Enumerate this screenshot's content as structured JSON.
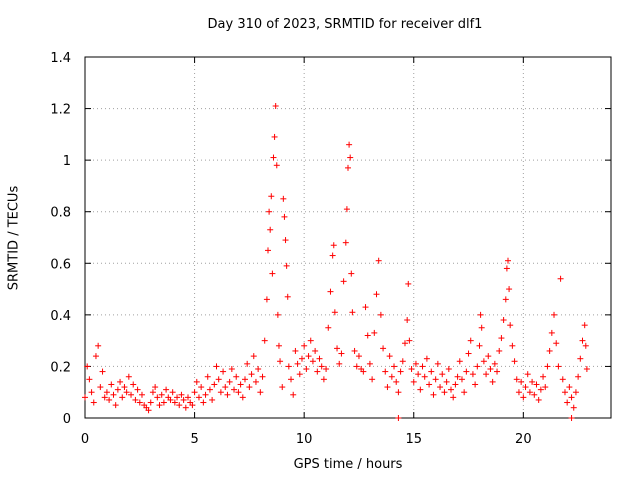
{
  "chart_data": {
    "type": "scatter",
    "title": "Day 310 of 2023, SRMTID for receiver dlf1",
    "xlabel": "GPS time / hours",
    "ylabel": "SRMTID / TECUs",
    "xlim": [
      0,
      24
    ],
    "ylim": [
      0,
      1.4
    ],
    "xticks": [
      "0",
      "5",
      "10",
      "15",
      "20"
    ],
    "yticks": [
      "0",
      "0.2",
      "0.4",
      "0.6",
      "0.8",
      "1",
      "1.2",
      "1.4"
    ],
    "grid": true,
    "marker": "+",
    "series_color": "#ff0000",
    "series": [
      {
        "name": "SRMTID",
        "points": [
          [
            0.0,
            0.08
          ],
          [
            0.1,
            0.2
          ],
          [
            0.2,
            0.15
          ],
          [
            0.3,
            0.1
          ],
          [
            0.4,
            0.06
          ],
          [
            0.5,
            0.24
          ],
          [
            0.6,
            0.28
          ],
          [
            0.7,
            0.12
          ],
          [
            0.8,
            0.18
          ],
          [
            0.9,
            0.08
          ],
          [
            1.0,
            0.1
          ],
          [
            1.1,
            0.07
          ],
          [
            1.2,
            0.13
          ],
          [
            1.3,
            0.09
          ],
          [
            1.4,
            0.05
          ],
          [
            1.5,
            0.11
          ],
          [
            1.6,
            0.14
          ],
          [
            1.7,
            0.08
          ],
          [
            1.8,
            0.12
          ],
          [
            1.9,
            0.1
          ],
          [
            2.0,
            0.16
          ],
          [
            2.1,
            0.09
          ],
          [
            2.2,
            0.13
          ],
          [
            2.3,
            0.07
          ],
          [
            2.4,
            0.11
          ],
          [
            2.5,
            0.06
          ],
          [
            2.6,
            0.09
          ],
          [
            2.7,
            0.05
          ],
          [
            2.8,
            0.04
          ],
          [
            2.9,
            0.03
          ],
          [
            3.0,
            0.06
          ],
          [
            3.1,
            0.1
          ],
          [
            3.2,
            0.12
          ],
          [
            3.3,
            0.08
          ],
          [
            3.4,
            0.05
          ],
          [
            3.5,
            0.09
          ],
          [
            3.6,
            0.06
          ],
          [
            3.7,
            0.11
          ],
          [
            3.8,
            0.08
          ],
          [
            3.9,
            0.07
          ],
          [
            4.0,
            0.1
          ],
          [
            4.1,
            0.06
          ],
          [
            4.2,
            0.08
          ],
          [
            4.3,
            0.05
          ],
          [
            4.4,
            0.09
          ],
          [
            4.5,
            0.07
          ],
          [
            4.6,
            0.04
          ],
          [
            4.7,
            0.08
          ],
          [
            4.8,
            0.06
          ],
          [
            4.9,
            0.05
          ],
          [
            5.0,
            0.1
          ],
          [
            5.1,
            0.14
          ],
          [
            5.2,
            0.08
          ],
          [
            5.3,
            0.12
          ],
          [
            5.4,
            0.06
          ],
          [
            5.5,
            0.09
          ],
          [
            5.6,
            0.16
          ],
          [
            5.7,
            0.11
          ],
          [
            5.8,
            0.07
          ],
          [
            5.9,
            0.13
          ],
          [
            6.0,
            0.2
          ],
          [
            6.1,
            0.15
          ],
          [
            6.2,
            0.1
          ],
          [
            6.3,
            0.18
          ],
          [
            6.4,
            0.12
          ],
          [
            6.5,
            0.09
          ],
          [
            6.6,
            0.14
          ],
          [
            6.7,
            0.19
          ],
          [
            6.8,
            0.11
          ],
          [
            6.9,
            0.16
          ],
          [
            7.0,
            0.1
          ],
          [
            7.1,
            0.13
          ],
          [
            7.2,
            0.08
          ],
          [
            7.3,
            0.15
          ],
          [
            7.4,
            0.21
          ],
          [
            7.5,
            0.12
          ],
          [
            7.6,
            0.17
          ],
          [
            7.7,
            0.24
          ],
          [
            7.8,
            0.14
          ],
          [
            7.9,
            0.19
          ],
          [
            8.0,
            0.1
          ],
          [
            8.1,
            0.16
          ],
          [
            8.2,
            0.3
          ],
          [
            8.3,
            0.46
          ],
          [
            8.35,
            0.65
          ],
          [
            8.4,
            0.8
          ],
          [
            8.45,
            0.73
          ],
          [
            8.5,
            0.86
          ],
          [
            8.55,
            0.56
          ],
          [
            8.6,
            1.01
          ],
          [
            8.65,
            1.09
          ],
          [
            8.7,
            1.21
          ],
          [
            8.75,
            0.98
          ],
          [
            8.8,
            0.4
          ],
          [
            8.85,
            0.28
          ],
          [
            8.9,
            0.22
          ],
          [
            9.0,
            0.12
          ],
          [
            9.05,
            0.85
          ],
          [
            9.1,
            0.78
          ],
          [
            9.15,
            0.69
          ],
          [
            9.2,
            0.59
          ],
          [
            9.25,
            0.47
          ],
          [
            9.3,
            0.2
          ],
          [
            9.4,
            0.15
          ],
          [
            9.5,
            0.09
          ],
          [
            9.6,
            0.26
          ],
          [
            9.7,
            0.21
          ],
          [
            9.8,
            0.17
          ],
          [
            9.9,
            0.23
          ],
          [
            10.0,
            0.28
          ],
          [
            10.1,
            0.19
          ],
          [
            10.2,
            0.24
          ],
          [
            10.3,
            0.3
          ],
          [
            10.4,
            0.22
          ],
          [
            10.5,
            0.26
          ],
          [
            10.6,
            0.18
          ],
          [
            10.7,
            0.23
          ],
          [
            10.8,
            0.2
          ],
          [
            10.9,
            0.15
          ],
          [
            11.0,
            0.19
          ],
          [
            11.1,
            0.35
          ],
          [
            11.2,
            0.49
          ],
          [
            11.3,
            0.63
          ],
          [
            11.35,
            0.67
          ],
          [
            11.4,
            0.41
          ],
          [
            11.5,
            0.27
          ],
          [
            11.6,
            0.21
          ],
          [
            11.7,
            0.25
          ],
          [
            11.8,
            0.53
          ],
          [
            11.9,
            0.68
          ],
          [
            11.95,
            0.81
          ],
          [
            12.0,
            0.97
          ],
          [
            12.05,
            1.06
          ],
          [
            12.1,
            1.01
          ],
          [
            12.15,
            0.56
          ],
          [
            12.2,
            0.41
          ],
          [
            12.3,
            0.26
          ],
          [
            12.4,
            0.2
          ],
          [
            12.5,
            0.24
          ],
          [
            12.6,
            0.19
          ],
          [
            12.7,
            0.18
          ],
          [
            12.8,
            0.43
          ],
          [
            12.9,
            0.32
          ],
          [
            13.0,
            0.21
          ],
          [
            13.1,
            0.15
          ],
          [
            13.2,
            0.33
          ],
          [
            13.3,
            0.48
          ],
          [
            13.4,
            0.61
          ],
          [
            13.5,
            0.4
          ],
          [
            13.6,
            0.27
          ],
          [
            13.7,
            0.18
          ],
          [
            13.8,
            0.12
          ],
          [
            13.9,
            0.24
          ],
          [
            14.0,
            0.16
          ],
          [
            14.1,
            0.2
          ],
          [
            14.2,
            0.14
          ],
          [
            14.3,
            0.1
          ],
          [
            14.4,
            0.18
          ],
          [
            14.5,
            0.22
          ],
          [
            14.6,
            0.29
          ],
          [
            14.7,
            0.38
          ],
          [
            14.75,
            0.52
          ],
          [
            14.8,
            0.3
          ],
          [
            14.9,
            0.19
          ],
          [
            15.0,
            0.14
          ],
          [
            15.1,
            0.21
          ],
          [
            15.2,
            0.17
          ],
          [
            15.3,
            0.11
          ],
          [
            15.4,
            0.2
          ],
          [
            15.5,
            0.16
          ],
          [
            15.6,
            0.23
          ],
          [
            15.7,
            0.13
          ],
          [
            15.8,
            0.18
          ],
          [
            15.9,
            0.09
          ],
          [
            16.0,
            0.15
          ],
          [
            16.1,
            0.21
          ],
          [
            16.2,
            0.12
          ],
          [
            16.3,
            0.17
          ],
          [
            16.4,
            0.1
          ],
          [
            16.5,
            0.14
          ],
          [
            16.6,
            0.19
          ],
          [
            16.7,
            0.11
          ],
          [
            16.8,
            0.08
          ],
          [
            16.9,
            0.13
          ],
          [
            17.0,
            0.16
          ],
          [
            17.1,
            0.22
          ],
          [
            17.2,
            0.15
          ],
          [
            17.3,
            0.1
          ],
          [
            17.4,
            0.18
          ],
          [
            17.5,
            0.25
          ],
          [
            17.6,
            0.3
          ],
          [
            17.7,
            0.17
          ],
          [
            17.8,
            0.13
          ],
          [
            17.9,
            0.2
          ],
          [
            18.0,
            0.28
          ],
          [
            18.05,
            0.4
          ],
          [
            18.1,
            0.35
          ],
          [
            18.2,
            0.22
          ],
          [
            18.3,
            0.17
          ],
          [
            18.4,
            0.24
          ],
          [
            18.5,
            0.19
          ],
          [
            18.6,
            0.14
          ],
          [
            18.7,
            0.21
          ],
          [
            18.8,
            0.18
          ],
          [
            18.9,
            0.26
          ],
          [
            19.0,
            0.31
          ],
          [
            19.1,
            0.38
          ],
          [
            19.2,
            0.46
          ],
          [
            19.25,
            0.58
          ],
          [
            19.3,
            0.61
          ],
          [
            19.35,
            0.5
          ],
          [
            19.4,
            0.36
          ],
          [
            19.5,
            0.28
          ],
          [
            19.6,
            0.22
          ],
          [
            19.7,
            0.15
          ],
          [
            19.8,
            0.1
          ],
          [
            19.9,
            0.14
          ],
          [
            20.0,
            0.08
          ],
          [
            20.1,
            0.12
          ],
          [
            20.2,
            0.17
          ],
          [
            20.3,
            0.1
          ],
          [
            20.4,
            0.14
          ],
          [
            20.5,
            0.09
          ],
          [
            20.6,
            0.13
          ],
          [
            20.7,
            0.07
          ],
          [
            20.8,
            0.11
          ],
          [
            20.9,
            0.16
          ],
          [
            21.0,
            0.12
          ],
          [
            21.1,
            0.2
          ],
          [
            21.2,
            0.26
          ],
          [
            21.3,
            0.33
          ],
          [
            21.4,
            0.4
          ],
          [
            21.5,
            0.29
          ],
          [
            21.6,
            0.2
          ],
          [
            21.7,
            0.54
          ],
          [
            21.8,
            0.15
          ],
          [
            21.9,
            0.1
          ],
          [
            22.0,
            0.06
          ],
          [
            22.1,
            0.12
          ],
          [
            22.2,
            0.08
          ],
          [
            22.3,
            0.04
          ],
          [
            22.4,
            0.1
          ],
          [
            22.5,
            0.16
          ],
          [
            22.6,
            0.23
          ],
          [
            22.7,
            0.3
          ],
          [
            22.8,
            0.36
          ],
          [
            22.85,
            0.28
          ],
          [
            22.9,
            0.19
          ],
          [
            14.3,
            0.0
          ],
          [
            22.2,
            0.0
          ]
        ]
      }
    ]
  }
}
